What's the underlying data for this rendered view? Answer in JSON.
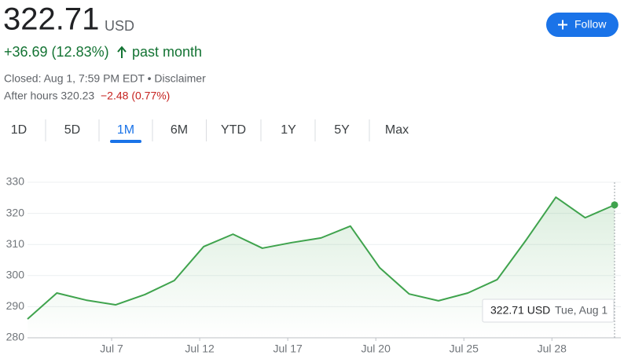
{
  "header": {
    "price": "322.71",
    "currency": "USD",
    "change": "+36.69 (12.83%)",
    "period": "past month",
    "closed": "Closed: Aug 1, 7:59 PM EDT • Disclaimer",
    "after_hours": "After hours 320.23",
    "after_change": "−2.48 (0.77%)",
    "follow": "Follow"
  },
  "tabs": [
    "1D",
    "5D",
    "1M",
    "6M",
    "YTD",
    "1Y",
    "5Y",
    "Max"
  ],
  "active_tab": 2,
  "tooltip": {
    "value": "322.71 USD",
    "date": "Tue, Aug 1"
  },
  "chart_data": {
    "type": "line",
    "categories": [
      null,
      null,
      null,
      "Jul 7",
      null,
      null,
      "Jul 12",
      null,
      null,
      "Jul 17",
      null,
      null,
      "Jul 20",
      null,
      null,
      "Jul 25",
      null,
      null,
      "Jul 28",
      null,
      null
    ],
    "series": [
      {
        "color": "#3fa34d",
        "values": [
          286.02,
          294.4,
          292.1,
          290.6,
          293.9,
          298.4,
          309.3,
          313.3,
          308.8,
          310.6,
          312.1,
          315.9,
          302.5,
          294.1,
          291.9,
          294.4,
          298.7,
          311.6,
          325.2,
          318.6,
          322.71
        ]
      }
    ],
    "ylim": [
      280,
      330
    ],
    "yticks": [
      280,
      290,
      300,
      310,
      320,
      330
    ],
    "grid": true
  }
}
